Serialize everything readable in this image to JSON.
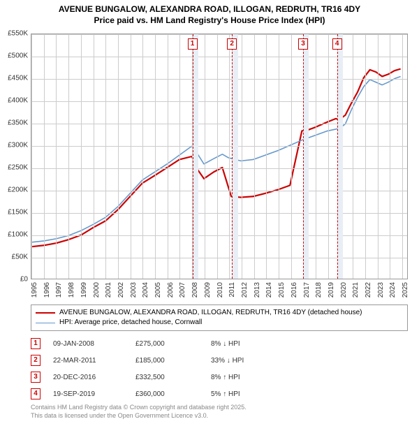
{
  "title": {
    "line1": "AVENUE BUNGALOW, ALEXANDRA ROAD, ILLOGAN, REDRUTH, TR16 4DY",
    "line2": "Price paid vs. HM Land Registry's House Price Index (HPI)",
    "fontsize": 12,
    "color": "#000000"
  },
  "chart": {
    "type": "line",
    "background_color": "#ffffff",
    "plot_border_color": "#999999",
    "grid_color": "#cccccc",
    "xlim": [
      1995,
      2025.5
    ],
    "ylim": [
      0,
      550000
    ],
    "xtick_step": 1,
    "ytick_step": 50000,
    "xticks": [
      1995,
      1996,
      1997,
      1998,
      1999,
      2000,
      2001,
      2002,
      2003,
      2004,
      2005,
      2006,
      2007,
      2008,
      2009,
      2010,
      2011,
      2012,
      2013,
      2014,
      2015,
      2016,
      2017,
      2018,
      2019,
      2020,
      2021,
      2022,
      2023,
      2024,
      2025
    ],
    "ytick_labels": [
      "£0",
      "£50K",
      "£100K",
      "£150K",
      "£200K",
      "£250K",
      "£300K",
      "£350K",
      "£400K",
      "£450K",
      "£500K",
      "£550K"
    ],
    "tick_fontsize": 10,
    "series": [
      {
        "name": "property",
        "label": "AVENUE BUNGALOW, ALEXANDRA ROAD, ILLOGAN, REDRUTH, TR16 4DY (detached house)",
        "color": "#cc0000",
        "line_width": 2.2,
        "points": [
          [
            1995,
            72000
          ],
          [
            1996,
            75000
          ],
          [
            1997,
            80000
          ],
          [
            1998,
            88000
          ],
          [
            1999,
            98000
          ],
          [
            2000,
            115000
          ],
          [
            2001,
            130000
          ],
          [
            2002,
            155000
          ],
          [
            2003,
            185000
          ],
          [
            2004,
            215000
          ],
          [
            2005,
            232000
          ],
          [
            2006,
            250000
          ],
          [
            2007,
            268000
          ],
          [
            2008.02,
            275000
          ],
          [
            2008.5,
            245000
          ],
          [
            2009,
            225000
          ],
          [
            2009.8,
            240000
          ],
          [
            2010.5,
            250000
          ],
          [
            2011.22,
            185000
          ],
          [
            2012,
            183000
          ],
          [
            2013,
            185000
          ],
          [
            2014,
            192000
          ],
          [
            2015,
            200000
          ],
          [
            2016,
            210000
          ],
          [
            2016.97,
            332500
          ],
          [
            2017.5,
            335000
          ],
          [
            2018,
            340000
          ],
          [
            2019,
            352000
          ],
          [
            2019.72,
            360000
          ],
          [
            2020,
            358000
          ],
          [
            2020.5,
            368000
          ],
          [
            2021,
            395000
          ],
          [
            2021.5,
            420000
          ],
          [
            2022,
            452000
          ],
          [
            2022.5,
            470000
          ],
          [
            2023,
            465000
          ],
          [
            2023.5,
            455000
          ],
          [
            2024,
            460000
          ],
          [
            2024.5,
            468000
          ],
          [
            2025,
            472000
          ]
        ]
      },
      {
        "name": "hpi",
        "label": "HPI: Average price, detached house, Cornwall",
        "color": "#6699cc",
        "line_width": 1.6,
        "points": [
          [
            1995,
            82000
          ],
          [
            1996,
            85000
          ],
          [
            1997,
            90000
          ],
          [
            1998,
            97000
          ],
          [
            1999,
            108000
          ],
          [
            2000,
            122000
          ],
          [
            2001,
            138000
          ],
          [
            2002,
            162000
          ],
          [
            2003,
            192000
          ],
          [
            2004,
            222000
          ],
          [
            2005,
            240000
          ],
          [
            2006,
            258000
          ],
          [
            2007,
            278000
          ],
          [
            2008,
            298000
          ],
          [
            2008.5,
            280000
          ],
          [
            2009,
            258000
          ],
          [
            2009.8,
            270000
          ],
          [
            2010.5,
            280000
          ],
          [
            2011,
            272000
          ],
          [
            2012,
            265000
          ],
          [
            2013,
            268000
          ],
          [
            2014,
            278000
          ],
          [
            2015,
            288000
          ],
          [
            2016,
            300000
          ],
          [
            2017,
            312000
          ],
          [
            2018,
            322000
          ],
          [
            2019,
            332000
          ],
          [
            2020,
            338000
          ],
          [
            2020.5,
            348000
          ],
          [
            2021,
            380000
          ],
          [
            2021.5,
            408000
          ],
          [
            2022,
            432000
          ],
          [
            2022.5,
            448000
          ],
          [
            2023,
            442000
          ],
          [
            2023.5,
            436000
          ],
          [
            2024,
            442000
          ],
          [
            2024.5,
            450000
          ],
          [
            2025,
            455000
          ]
        ]
      }
    ],
    "event_bands": [
      {
        "x_start": 2008.02,
        "x_end": 2008.5,
        "color": "#e8eef5"
      },
      {
        "x_start": 2011.22,
        "x_end": 2011.7,
        "color": "#e8eef5"
      },
      {
        "x_start": 2016.97,
        "x_end": 2017.45,
        "color": "#e8eef5"
      },
      {
        "x_start": 2019.72,
        "x_end": 2020.2,
        "color": "#e8eef5"
      }
    ],
    "event_lines": [
      {
        "num": "1",
        "x": 2008.02,
        "color": "#cc0000"
      },
      {
        "num": "2",
        "x": 2011.22,
        "color": "#cc0000"
      },
      {
        "num": "3",
        "x": 2016.97,
        "color": "#cc0000"
      },
      {
        "num": "4",
        "x": 2019.72,
        "color": "#cc0000"
      }
    ]
  },
  "legend": {
    "border_color": "#999999",
    "fontsize": 10
  },
  "events_table": {
    "rows": [
      {
        "num": "1",
        "date": "09-JAN-2008",
        "price": "£275,000",
        "delta": "8% ↓ HPI"
      },
      {
        "num": "2",
        "date": "22-MAR-2011",
        "price": "£185,000",
        "delta": "33% ↓ HPI"
      },
      {
        "num": "3",
        "date": "20-DEC-2016",
        "price": "£332,500",
        "delta": "8% ↑ HPI"
      },
      {
        "num": "4",
        "date": "19-SEP-2019",
        "price": "£360,000",
        "delta": "5% ↑ HPI"
      }
    ],
    "fontsize": 10
  },
  "attribution": {
    "line1": "Contains HM Land Registry data © Crown copyright and database right 2025.",
    "line2": "This data is licensed under the Open Government Licence v3.0.",
    "color": "#888888",
    "fontsize": 9
  }
}
